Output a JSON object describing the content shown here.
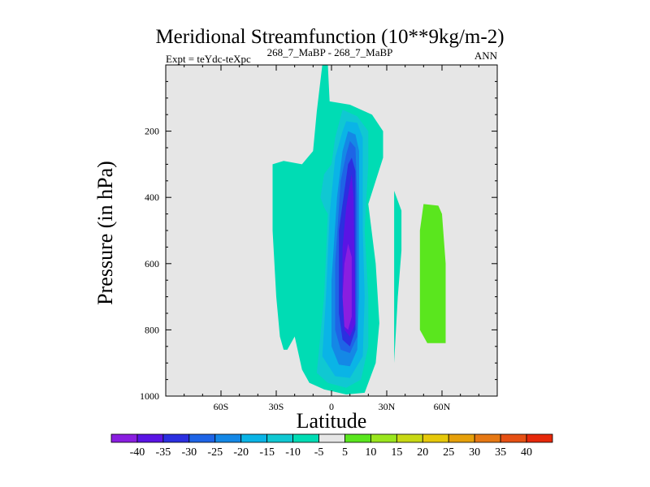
{
  "chart_data": {
    "type": "contour",
    "title": "Meridional Streamfunction (10**9kg/m-2)",
    "left_string": "Expt = teYdc-teXpc",
    "center_string": "268_7_MaBP - 268_7_MaBP",
    "right_string": "ANN",
    "xlabel": "Latitude",
    "ylabel": "Pressure (in hPa)",
    "xlim": [
      -90,
      90
    ],
    "ylim": [
      1000,
      0
    ],
    "x_ticks": [
      {
        "value": -60,
        "label": "60S"
      },
      {
        "value": -30,
        "label": "30S"
      },
      {
        "value": 0,
        "label": "0"
      },
      {
        "value": 30,
        "label": "30N"
      },
      {
        "value": 60,
        "label": "60N"
      }
    ],
    "y_ticks": [
      {
        "value": 200,
        "label": "200"
      },
      {
        "value": 400,
        "label": "400"
      },
      {
        "value": 600,
        "label": "600"
      },
      {
        "value": 800,
        "label": "800"
      },
      {
        "value": 1000,
        "label": "1000"
      }
    ],
    "background_color": "#e6e6e6",
    "contour_levels": [
      -40,
      -35,
      -30,
      -25,
      -20,
      -15,
      -10,
      -5,
      5,
      10,
      15,
      20,
      25,
      30,
      35,
      40
    ],
    "colorbar_labels": [
      "-40",
      "-35",
      "-30",
      "-25",
      "-20",
      "-15",
      "-10",
      "-5",
      "5",
      "10",
      "15",
      "20",
      "25",
      "30",
      "35",
      "40"
    ],
    "colorbar_colors": [
      "#8a1ee0",
      "#5a14e4",
      "#2b2fe0",
      "#1e64e6",
      "#1488e6",
      "#0ab4e6",
      "#10c8d2",
      "#00dcb4",
      "#e6e6e6",
      "#5ae61e",
      "#9ae61e",
      "#c8d814",
      "#e6c80a",
      "#e6a00a",
      "#e67814",
      "#e65014",
      "#e6280a"
    ],
    "regions": [
      {
        "level": "-5",
        "color": "#00dcb4",
        "polygon": [
          [
            -5,
            0
          ],
          [
            -2,
            0
          ],
          [
            -1,
            110
          ],
          [
            10,
            120
          ],
          [
            22,
            150
          ],
          [
            28,
            200
          ],
          [
            28,
            280
          ],
          [
            20,
            420
          ],
          [
            24,
            600
          ],
          [
            26,
            780
          ],
          [
            24,
            900
          ],
          [
            18,
            990
          ],
          [
            8,
            995
          ],
          [
            -4,
            980
          ],
          [
            -12,
            960
          ],
          [
            -16,
            920
          ],
          [
            -20,
            820
          ],
          [
            -24,
            860
          ],
          [
            -26,
            860
          ],
          [
            -28,
            820
          ],
          [
            -30,
            700
          ],
          [
            -32,
            500
          ],
          [
            -32,
            300
          ],
          [
            -26,
            290
          ],
          [
            -16,
            300
          ],
          [
            -10,
            260
          ],
          [
            -8,
            140
          ],
          [
            -5,
            0
          ]
        ]
      },
      {
        "level": "-5",
        "color": "#00dcb4",
        "polygon": [
          [
            38,
            440
          ],
          [
            34,
            380
          ],
          [
            34,
            900
          ],
          [
            36,
            700
          ],
          [
            38,
            560
          ],
          [
            38,
            440
          ]
        ]
      },
      {
        "level": "5",
        "color": "#5ae61e",
        "polygon": [
          [
            50,
            420
          ],
          [
            58,
            425
          ],
          [
            60,
            450
          ],
          [
            62,
            600
          ],
          [
            62,
            840
          ],
          [
            52,
            840
          ],
          [
            48,
            800
          ],
          [
            48,
            500
          ],
          [
            50,
            420
          ]
        ]
      },
      {
        "level": "-10",
        "color": "#10c8d2",
        "polygon": [
          [
            6,
            135
          ],
          [
            14,
            155
          ],
          [
            20,
            200
          ],
          [
            20,
            300
          ],
          [
            18,
            500
          ],
          [
            20,
            700
          ],
          [
            20,
            850
          ],
          [
            16,
            950
          ],
          [
            8,
            975
          ],
          [
            -2,
            960
          ],
          [
            -8,
            930
          ],
          [
            -4,
            700
          ],
          [
            -2,
            450
          ],
          [
            -4,
            430
          ],
          [
            -6,
            400
          ],
          [
            -4,
            330
          ],
          [
            0,
            300
          ],
          [
            2,
            220
          ],
          [
            6,
            135
          ]
        ]
      },
      {
        "level": "-15",
        "color": "#0ab4e6",
        "polygon": [
          [
            8,
            170
          ],
          [
            14,
            175
          ],
          [
            17,
            220
          ],
          [
            17,
            500
          ],
          [
            18,
            700
          ],
          [
            17,
            880
          ],
          [
            10,
            945
          ],
          [
            2,
            940
          ],
          [
            -5,
            880
          ],
          [
            -3,
            700
          ],
          [
            -1,
            450
          ],
          [
            2,
            280
          ],
          [
            6,
            200
          ],
          [
            8,
            170
          ]
        ]
      },
      {
        "level": "-20",
        "color": "#1488e6",
        "polygon": [
          [
            9,
            200
          ],
          [
            13,
            210
          ],
          [
            15,
            260
          ],
          [
            15,
            700
          ],
          [
            14,
            860
          ],
          [
            10,
            910
          ],
          [
            4,
            905
          ],
          [
            0,
            850
          ],
          [
            0,
            650
          ],
          [
            3,
            400
          ],
          [
            6,
            260
          ],
          [
            9,
            200
          ]
        ]
      },
      {
        "level": "-25",
        "color": "#1e64e6",
        "polygon": [
          [
            10,
            230
          ],
          [
            13,
            250
          ],
          [
            14,
            400
          ],
          [
            14,
            820
          ],
          [
            10,
            870
          ],
          [
            5,
            860
          ],
          [
            2,
            800
          ],
          [
            2,
            600
          ],
          [
            5,
            350
          ],
          [
            8,
            270
          ],
          [
            10,
            230
          ]
        ]
      },
      {
        "level": "-30",
        "color": "#2b2fe0",
        "polygon": [
          [
            11,
            280
          ],
          [
            13,
            320
          ],
          [
            13,
            800
          ],
          [
            10,
            850
          ],
          [
            6,
            830
          ],
          [
            4,
            750
          ],
          [
            4,
            500
          ],
          [
            7,
            380
          ],
          [
            9,
            300
          ],
          [
            11,
            280
          ]
        ]
      },
      {
        "level": "-35",
        "color": "#5a14e4",
        "polygon": [
          [
            11,
            330
          ],
          [
            12,
            400
          ],
          [
            13,
            780
          ],
          [
            10,
            820
          ],
          [
            7,
            800
          ],
          [
            6,
            700
          ],
          [
            6,
            550
          ],
          [
            8,
            430
          ],
          [
            10,
            360
          ],
          [
            11,
            330
          ]
        ]
      },
      {
        "level": "-40",
        "color": "#8a1ee0",
        "polygon": [
          [
            9,
            540
          ],
          [
            11,
            580
          ],
          [
            11,
            760
          ],
          [
            9,
            800
          ],
          [
            7,
            790
          ],
          [
            6,
            700
          ],
          [
            7,
            600
          ],
          [
            9,
            540
          ]
        ]
      }
    ]
  }
}
